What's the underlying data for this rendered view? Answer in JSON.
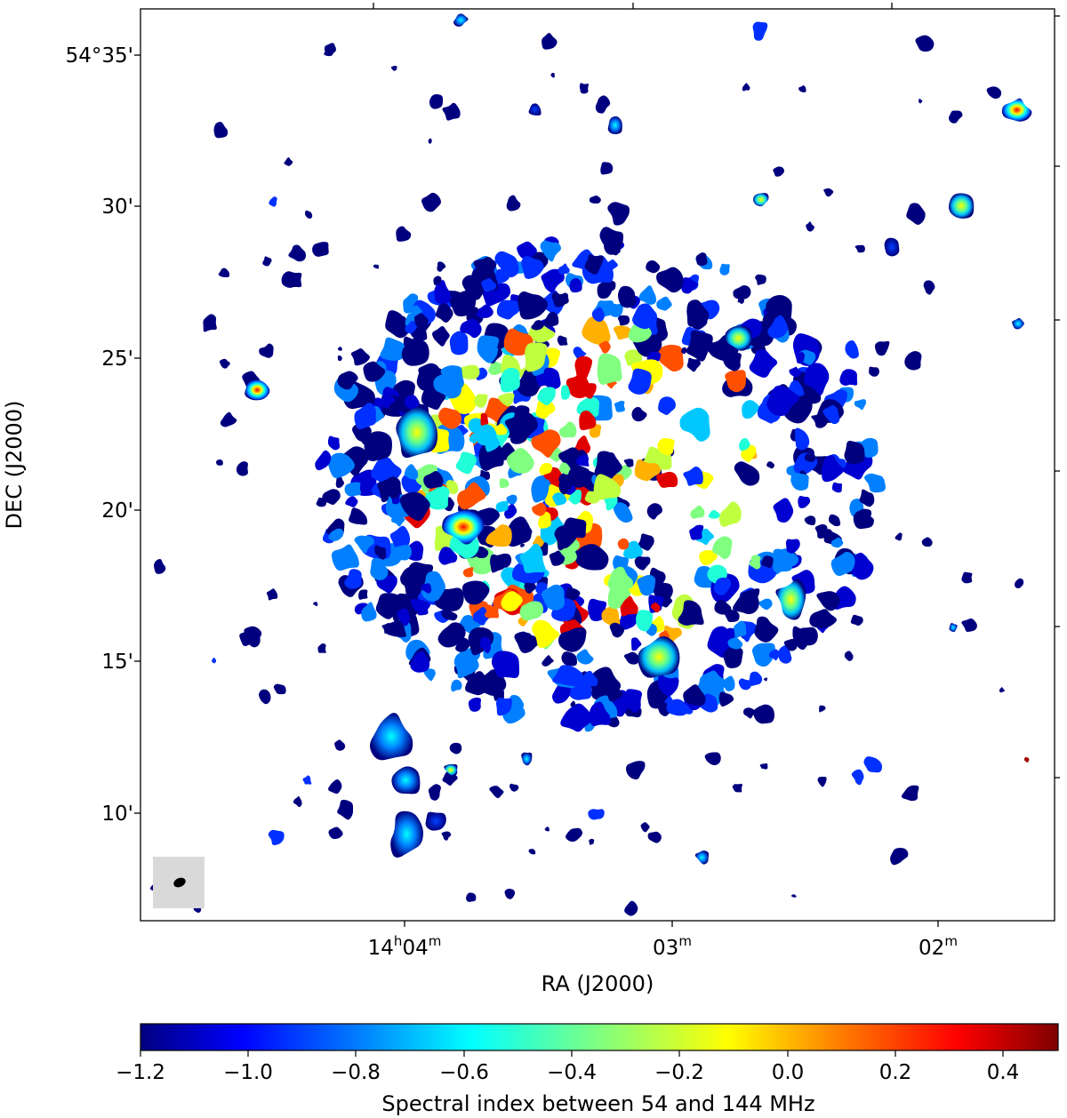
{
  "axes": {
    "x_label": "RA (J2000)",
    "y_label": "DEC (J2000)",
    "x_ticks": [
      {
        "base": "14",
        "sup1": "h",
        "mid": "04",
        "sup2": "m"
      },
      {
        "base": "",
        "sup1": "",
        "mid": "03",
        "sup2": "m"
      },
      {
        "base": "",
        "sup1": "",
        "mid": "02",
        "sup2": "m"
      }
    ],
    "y_ticks": [
      "54°35'",
      "30'",
      "25'",
      "20'",
      "15'",
      "10'"
    ]
  },
  "colorbar": {
    "label": "Spectral index between 54 and 144 MHz",
    "ticks": [
      "−1.2",
      "−1.0",
      "−0.8",
      "−0.6",
      "−0.4",
      "−0.2",
      "0.0",
      "0.2",
      "0.4"
    ],
    "range": [
      -1.2,
      0.5
    ],
    "colormap": "jet",
    "colormap_stops": [
      "#00007f",
      "#0000ff",
      "#0080ff",
      "#00ffff",
      "#80ff80",
      "#ffff00",
      "#ff8000",
      "#ff0000",
      "#7f0000"
    ]
  },
  "beam": {
    "box_color": "#d9d9d9",
    "ellipse_color": "#000000"
  },
  "map": {
    "background": "#ffffff",
    "dominant_color": "#00007f"
  }
}
